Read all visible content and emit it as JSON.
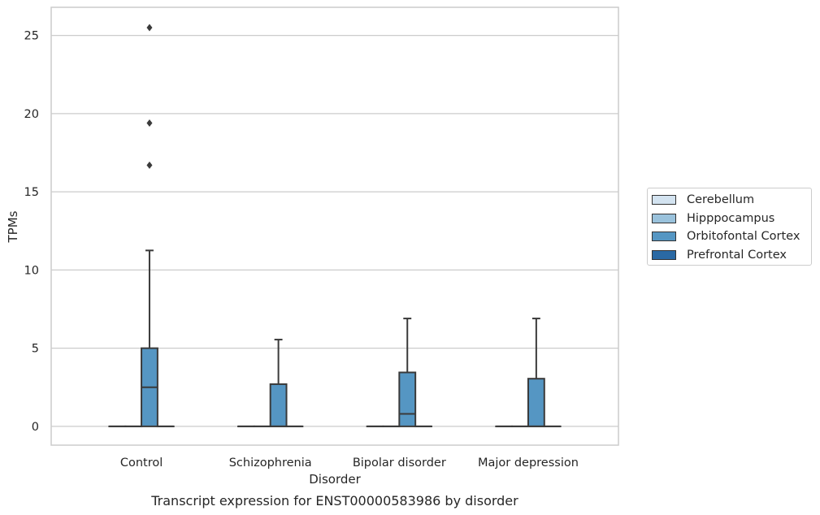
{
  "chart_data": {
    "type": "box",
    "title": "Transcript expression for ENST00000583986 by disorder",
    "xlabel": "Disorder",
    "ylabel": "TPMs",
    "ylim": [
      -1.2,
      26.8
    ],
    "yticks": [
      0,
      5,
      10,
      15,
      20,
      25
    ],
    "categories": [
      "Control",
      "Schizophrenia",
      "Bipolar disorder",
      "Major depression"
    ],
    "grid": true,
    "legend_position": "right",
    "series": [
      {
        "name": "Cerebellum",
        "color": "#d3e3f0",
        "boxes": [
          {
            "q1": 0,
            "median": 0,
            "q3": 0,
            "whislo": 0,
            "whishi": 0,
            "fliers": []
          },
          {
            "q1": 0,
            "median": 0,
            "q3": 0,
            "whislo": 0,
            "whishi": 0,
            "fliers": []
          },
          {
            "q1": 0,
            "median": 0,
            "q3": 0,
            "whislo": 0,
            "whishi": 0,
            "fliers": []
          },
          {
            "q1": 0,
            "median": 0,
            "q3": 0,
            "whislo": 0,
            "whishi": 0,
            "fliers": []
          }
        ]
      },
      {
        "name": "Hipppocampus",
        "color": "#9ac2dc",
        "boxes": [
          {
            "q1": 0,
            "median": 0,
            "q3": 0,
            "whislo": 0,
            "whishi": 0,
            "fliers": []
          },
          {
            "q1": 0,
            "median": 0,
            "q3": 0,
            "whislo": 0,
            "whishi": 0,
            "fliers": []
          },
          {
            "q1": 0,
            "median": 0,
            "q3": 0,
            "whislo": 0,
            "whishi": 0,
            "fliers": []
          },
          {
            "q1": 0,
            "median": 0,
            "q3": 0,
            "whislo": 0,
            "whishi": 0,
            "fliers": []
          }
        ]
      },
      {
        "name": "Orbitofontal Cortex",
        "color": "#5596c3",
        "boxes": [
          {
            "q1": 0,
            "median": 2.5,
            "q3": 5.0,
            "whislo": 0,
            "whishi": 11.25,
            "fliers": [
              16.7,
              19.4,
              25.5
            ]
          },
          {
            "q1": 0,
            "median": 0,
            "q3": 2.7,
            "whislo": 0,
            "whishi": 5.55,
            "fliers": []
          },
          {
            "q1": 0,
            "median": 0.8,
            "q3": 3.45,
            "whislo": 0,
            "whishi": 6.9,
            "fliers": []
          },
          {
            "q1": 0,
            "median": 0,
            "q3": 3.05,
            "whislo": 0,
            "whishi": 6.9,
            "fliers": []
          }
        ]
      },
      {
        "name": "Prefrontal Cortex",
        "color": "#2a69a4",
        "boxes": [
          {
            "q1": 0,
            "median": 0,
            "q3": 0,
            "whislo": 0,
            "whishi": 0,
            "fliers": []
          },
          {
            "q1": 0,
            "median": 0,
            "q3": 0,
            "whislo": 0,
            "whishi": 0,
            "fliers": []
          },
          {
            "q1": 0,
            "median": 0,
            "q3": 0,
            "whislo": 0,
            "whishi": 0,
            "fliers": []
          },
          {
            "q1": 0,
            "median": 0,
            "q3": 0,
            "whislo": 0,
            "whishi": 0,
            "fliers": []
          }
        ]
      }
    ]
  }
}
